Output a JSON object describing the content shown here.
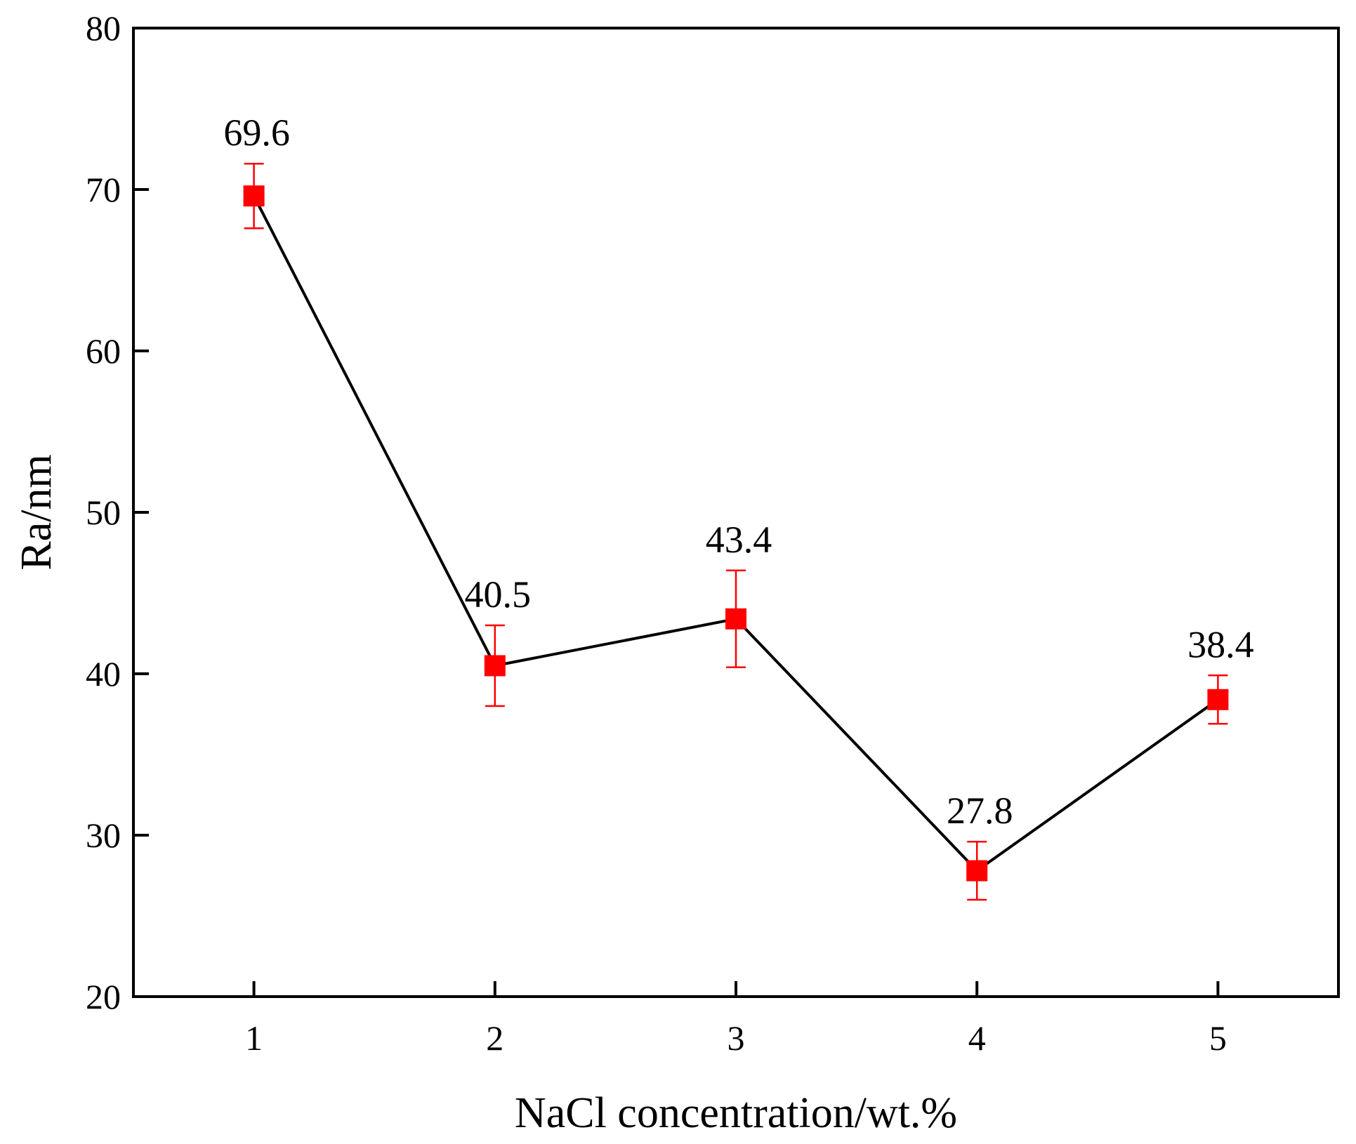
{
  "chart_data": {
    "type": "line",
    "title": "",
    "xlabel": "NaCl concentration/wt.%",
    "ylabel": "Ra/nm",
    "x": [
      1,
      2,
      3,
      4,
      5
    ],
    "x_tick_labels": [
      "1",
      "2",
      "3",
      "4",
      "5"
    ],
    "xlim": [
      0.5,
      5.5
    ],
    "ylim": [
      20,
      80
    ],
    "y_ticks": [
      20,
      30,
      40,
      50,
      60,
      70,
      80
    ],
    "y_tick_labels": [
      "20",
      "30",
      "40",
      "50",
      "60",
      "70",
      "80"
    ],
    "grid": false,
    "series": [
      {
        "name": "Ra",
        "values": [
          69.6,
          40.5,
          43.4,
          27.8,
          38.4
        ],
        "errors": [
          2.0,
          2.5,
          3.0,
          1.8,
          1.5
        ],
        "data_labels": [
          "69.6",
          "40.5",
          "43.4",
          "27.8",
          "38.4"
        ],
        "line_color": "#000000",
        "marker_color": "#ff0000",
        "marker": "square"
      }
    ]
  }
}
